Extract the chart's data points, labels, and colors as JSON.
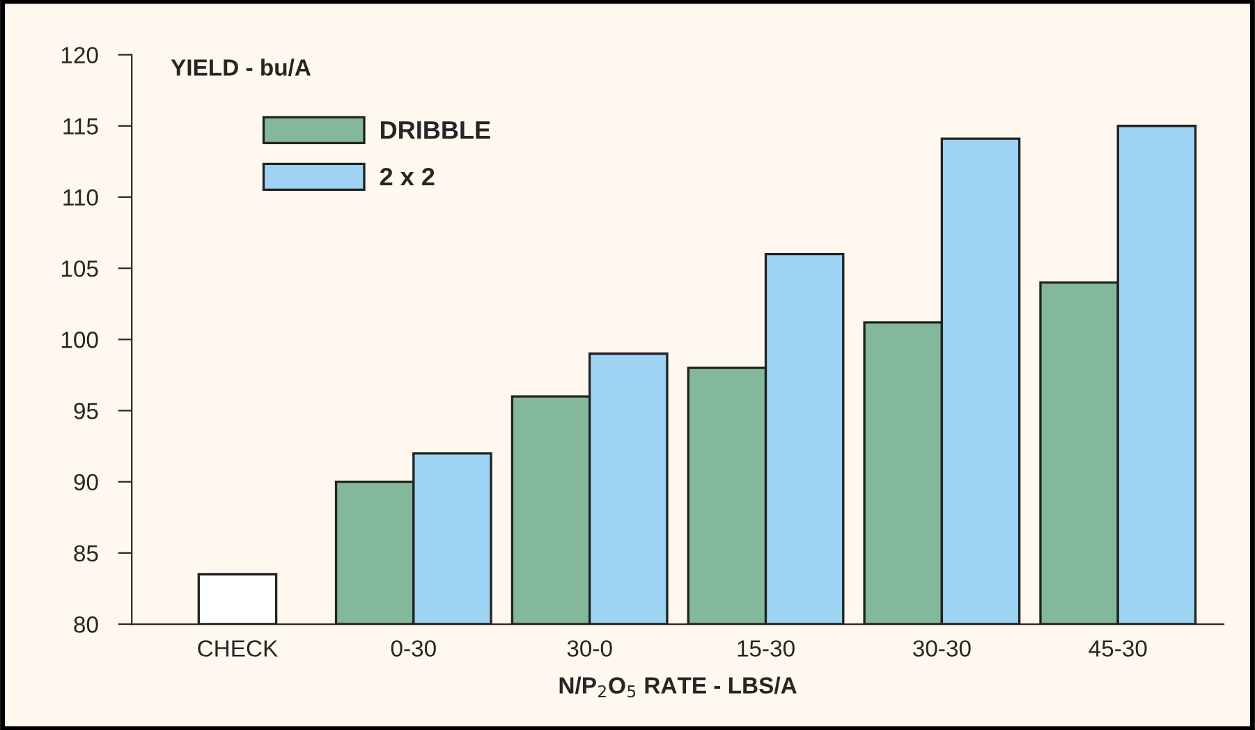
{
  "chart_data": {
    "type": "bar",
    "ylabel": "YIELD - bu/A",
    "xlabel": "N/P$_{2}$O$_{5}$ RATE - LBS/A",
    "categories": [
      "CHECK",
      "0-30",
      "30-0",
      "15-30",
      "30-30",
      "45-30"
    ],
    "series": [
      {
        "color": "#ffffff",
        "values": [
          83.5,
          null,
          null,
          null,
          null,
          null
        ]
      },
      {
        "name": "DRIBBLE",
        "color": "#84b89a",
        "values": [
          null,
          90,
          96,
          98,
          101.2,
          104
        ]
      },
      {
        "name": "2 x 2",
        "color": "#9fd3f3",
        "values": [
          null,
          92,
          99,
          106,
          114.1,
          115
        ]
      }
    ],
    "ylim": [
      80,
      120
    ],
    "yticks": [
      80,
      85,
      90,
      95,
      100,
      105,
      110,
      115,
      120
    ],
    "grid": false,
    "legend": "top left"
  }
}
